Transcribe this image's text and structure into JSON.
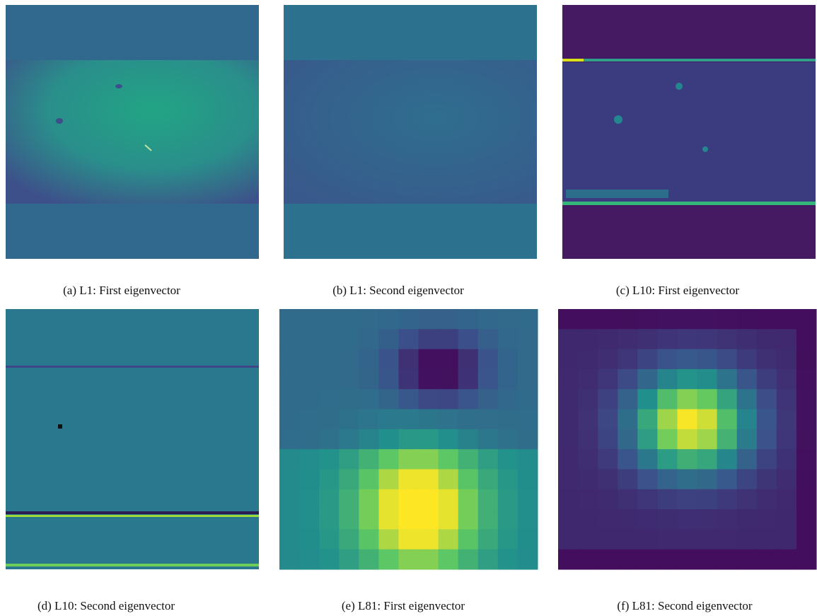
{
  "panels": [
    {
      "caption": "(a) L1: First eigenvector"
    },
    {
      "caption": "(b) L1: Second eigenvector"
    },
    {
      "caption": "(c) L10: First eigenvector"
    },
    {
      "caption": "(d) L10: Second eigenvector"
    },
    {
      "caption": "(e) L81: First eigenvector"
    },
    {
      "caption": "(f) L81: Second eigenvector"
    }
  ]
}
